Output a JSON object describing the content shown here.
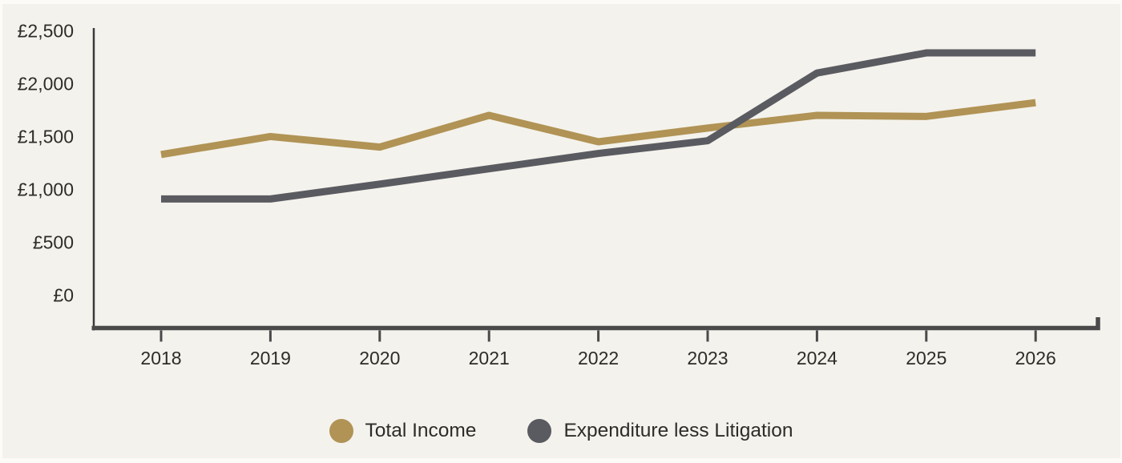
{
  "chart_data": {
    "type": "line",
    "title": "",
    "x": [
      "2018",
      "2019",
      "2020",
      "2021",
      "2022",
      "2023",
      "2024",
      "2025",
      "2026"
    ],
    "ylim": [
      0,
      2500
    ],
    "grid": false,
    "legend_position": "bottom",
    "y_ticks": {
      "labels": [
        "£0",
        "£500",
        "£1,000",
        "£1,500",
        "£2,000",
        "£2,500"
      ],
      "values": [
        0,
        500,
        1000,
        1500,
        2000,
        2500
      ]
    },
    "series": [
      {
        "name": "Total Income",
        "color": "#b09355",
        "values": [
          1330,
          1500,
          1400,
          1700,
          1450,
          1580,
          1700,
          1690,
          1820
        ]
      },
      {
        "name": "Expenditure less Litigation",
        "color": "#5a5b61",
        "values": [
          910,
          910,
          1050,
          1195,
          1340,
          1460,
          2100,
          2290,
          2290
        ]
      }
    ]
  },
  "colors": {
    "background": "#f4f2ec",
    "x_axis": "#4a4a4a",
    "y_axis": "#3a3a3c",
    "tick": "#4a4a4a",
    "label_text": "#2d2c2a"
  }
}
